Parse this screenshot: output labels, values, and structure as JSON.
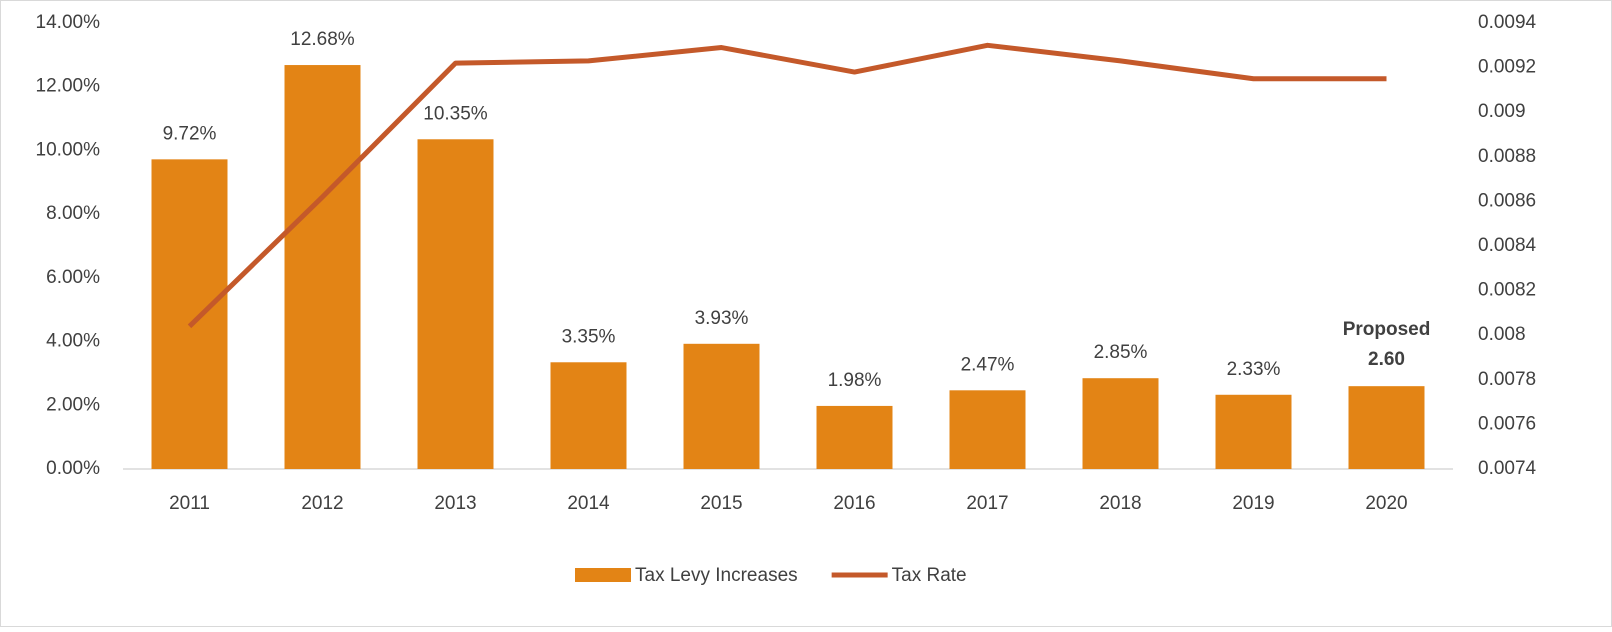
{
  "chart_data": {
    "type": "bar",
    "categories": [
      "2011",
      "2012",
      "2013",
      "2014",
      "2015",
      "2016",
      "2017",
      "2018",
      "2019",
      "2020"
    ],
    "ylim": [
      0,
      14
    ],
    "yticks": [
      {
        "value": 0,
        "label": "0.00%"
      },
      {
        "value": 2,
        "label": "2.00%"
      },
      {
        "value": 4,
        "label": "4.00%"
      },
      {
        "value": 6,
        "label": "6.00%"
      },
      {
        "value": 8,
        "label": "8.00%"
      },
      {
        "value": 10,
        "label": "10.00%"
      },
      {
        "value": 12,
        "label": "12.00%"
      },
      {
        "value": 14,
        "label": "14.00%"
      }
    ],
    "y2lim": [
      0.0074,
      0.0094
    ],
    "y2ticks": [
      0.0074,
      0.0076,
      0.0078,
      0.008,
      0.0082,
      0.0084,
      0.0086,
      0.0088,
      0.009,
      0.0092,
      0.0094
    ],
    "legend": "bottom",
    "series": [
      {
        "name": "Tax Levy Increases",
        "type": "bar",
        "color": "#e38415",
        "values": [
          9.72,
          12.68,
          10.35,
          3.35,
          3.93,
          1.98,
          2.47,
          2.85,
          2.33,
          2.6
        ],
        "value_labels": [
          "9.72%",
          "12.68%",
          "10.35%",
          "3.35%",
          "3.93%",
          "1.98%",
          "2.47%",
          "2.85%",
          "2.33%",
          "Proposed 2.60"
        ]
      },
      {
        "name": "Tax Rate",
        "type": "line",
        "axis": "y2",
        "color": "#c4592a",
        "values": [
          0.00804,
          0.00862,
          0.00922,
          0.00923,
          0.00929,
          0.00918,
          0.0093,
          0.00923,
          0.00915,
          0.00915
        ]
      }
    ]
  }
}
